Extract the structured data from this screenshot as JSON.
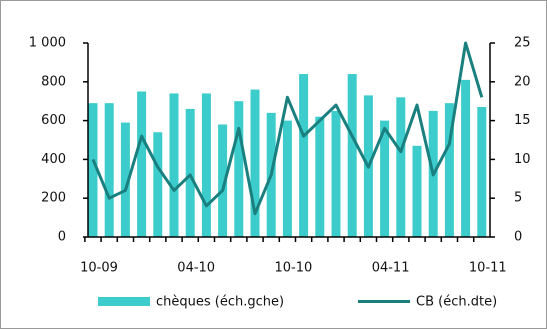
{
  "chart_data": {
    "type": "bar_line",
    "categories": [
      "10-09",
      null,
      null,
      null,
      null,
      null,
      "04-10",
      null,
      null,
      null,
      null,
      null,
      "10-10",
      null,
      null,
      null,
      null,
      null,
      "04-11",
      null,
      null,
      null,
      null,
      null,
      "10-11"
    ],
    "series": [
      {
        "name": "chèques (éch.gche)",
        "color": "#3ccccc",
        "type": "bar",
        "values": [
          690,
          690,
          590,
          750,
          540,
          740,
          660,
          740,
          580,
          700,
          760,
          640,
          600,
          840,
          620,
          650,
          840,
          730,
          600,
          720,
          470,
          650,
          690,
          810,
          670
        ]
      },
      {
        "name": "CB (éch.dte)",
        "color": "#1a7f7f",
        "type": "line",
        "axis": "y2",
        "values": [
          10,
          5,
          6,
          13,
          9,
          6,
          8,
          4,
          6,
          14,
          3,
          8,
          18,
          13,
          15,
          17,
          13,
          9,
          14,
          11,
          17,
          8,
          12,
          25,
          18
        ]
      }
    ],
    "ylim": [
      0,
      1000
    ],
    "yticks": [
      0,
      200,
      400,
      600,
      800,
      {
        "value": 1000,
        "label": "1 000"
      }
    ],
    "y2lim": [
      0,
      25
    ],
    "y2ticks": [
      0,
      5,
      10,
      15,
      20,
      25
    ]
  }
}
